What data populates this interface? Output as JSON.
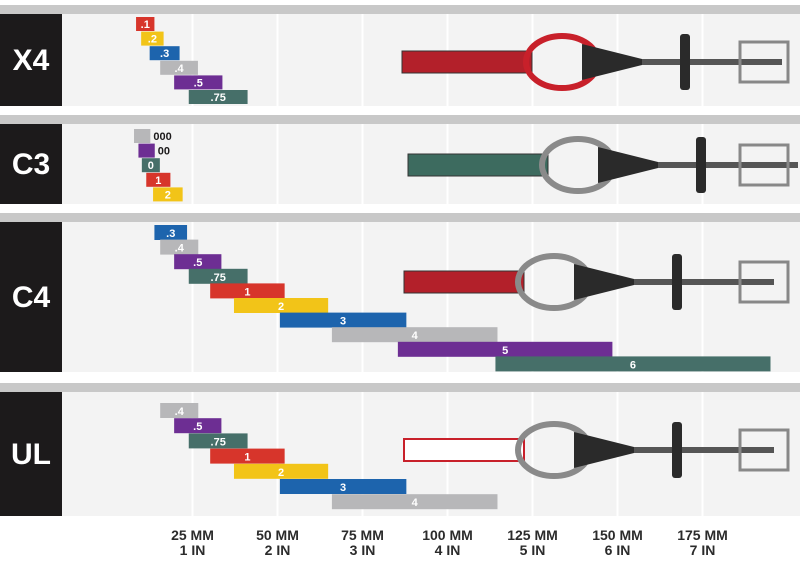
{
  "chart_data": {
    "type": "bar",
    "title": "",
    "xlabel": "",
    "ylabel": "",
    "x_unit_primary": "MM",
    "x_unit_secondary": "IN",
    "x_ticks": [
      {
        "mm": 25,
        "mm_label": "25 MM",
        "in_label": "1 IN"
      },
      {
        "mm": 50,
        "mm_label": "50 MM",
        "in_label": "2 IN"
      },
      {
        "mm": 75,
        "mm_label": "75 MM",
        "in_label": "3 IN"
      },
      {
        "mm": 100,
        "mm_label": "100 MM",
        "in_label": "4 IN"
      },
      {
        "mm": 125,
        "mm_label": "125 MM",
        "in_label": "5 IN"
      },
      {
        "mm": 150,
        "mm_label": "150 MM",
        "in_label": "6 IN"
      },
      {
        "mm": 175,
        "mm_label": "175 MM",
        "in_label": "7 IN"
      }
    ],
    "xlim": [
      0,
      200
    ],
    "grid": true,
    "colors": {
      "panel_bg": "#f3f3f3",
      "panel_separator": "#c8c8c8",
      "label_bg": "#1c1a1b",
      "label_text": "#ffffff",
      "gridline": "#ffffff"
    },
    "groups": [
      {
        "name": "X4",
        "sizes": [
          {
            "label": ".1",
            "min": 8.4,
            "max": 13.8,
            "color": "#d7352b"
          },
          {
            "label": ".2",
            "min": 9.9,
            "max": 16.5,
            "color": "#f2c418"
          },
          {
            "label": ".3",
            "min": 12.4,
            "max": 21.2,
            "color": "#1d64ad"
          },
          {
            "label": ".4",
            "min": 15.5,
            "max": 26.6,
            "color": "#b7b7b9"
          },
          {
            "label": ".5",
            "min": 19.6,
            "max": 33.8,
            "color": "#6d2e93"
          },
          {
            "label": ".75",
            "min": 23.9,
            "max": 41.2,
            "color": "#466f69"
          }
        ]
      },
      {
        "name": "C3",
        "sizes": [
          {
            "label": "000",
            "min": 7.8,
            "max": 12.6,
            "color": "#b7b7b9"
          },
          {
            "label": "00",
            "min": 9.1,
            "max": 13.9,
            "color": "#6d2e93"
          },
          {
            "label": "0",
            "min": 10.1,
            "max": 15.4,
            "color": "#466f69"
          },
          {
            "label": "1",
            "min": 11.4,
            "max": 18.5,
            "color": "#d7352b"
          },
          {
            "label": "2",
            "min": 13.4,
            "max": 22.1,
            "color": "#f2c418"
          }
        ]
      },
      {
        "name": "C4",
        "sizes": [
          {
            "label": ".3",
            "min": 13.8,
            "max": 23.4,
            "color": "#1d64ad"
          },
          {
            "label": ".4",
            "min": 15.5,
            "max": 26.7,
            "color": "#b7b7b9"
          },
          {
            "label": ".5",
            "min": 19.6,
            "max": 33.5,
            "color": "#6d2e93"
          },
          {
            "label": ".75",
            "min": 23.9,
            "max": 41.2,
            "color": "#466f69"
          },
          {
            "label": "1",
            "min": 30.2,
            "max": 52.1,
            "color": "#d7352b"
          },
          {
            "label": "2",
            "min": 37.2,
            "max": 64.9,
            "color": "#f2c418"
          },
          {
            "label": "3",
            "min": 50.7,
            "max": 87.9,
            "color": "#1d64ad"
          },
          {
            "label": "4",
            "min": 66.0,
            "max": 114.7,
            "color": "#b7b7b9"
          },
          {
            "label": "5",
            "min": 85.4,
            "max": 148.5,
            "color": "#6d2e93"
          },
          {
            "label": "6",
            "min": 114.1,
            "max": 195.0,
            "color": "#466f69"
          }
        ]
      },
      {
        "name": "UL",
        "sizes": [
          {
            "label": ".4",
            "min": 15.5,
            "max": 26.7,
            "color": "#b7b7b9"
          },
          {
            "label": ".5",
            "min": 19.6,
            "max": 33.5,
            "color": "#6d2e93"
          },
          {
            "label": ".75",
            "min": 23.9,
            "max": 41.2,
            "color": "#466f69"
          },
          {
            "label": "1",
            "min": 30.2,
            "max": 52.1,
            "color": "#d7352b"
          },
          {
            "label": "2",
            "min": 37.2,
            "max": 64.9,
            "color": "#f2c418"
          },
          {
            "label": "3",
            "min": 50.7,
            "max": 87.9,
            "color": "#1d64ad"
          },
          {
            "label": "4",
            "min": 66.0,
            "max": 114.7,
            "color": "#b7b7b9"
          }
        ]
      }
    ]
  }
}
